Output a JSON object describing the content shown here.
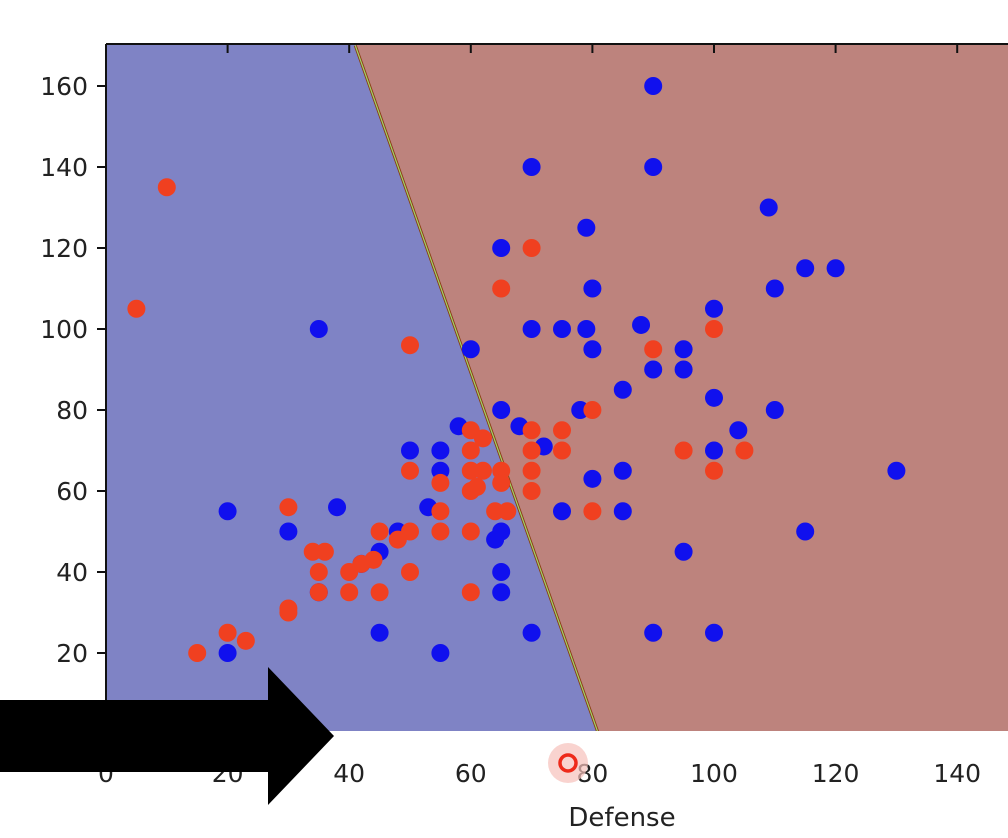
{
  "chart_data": {
    "type": "scatter",
    "title": "",
    "xlabel": "Defense",
    "ylabel": "",
    "xlim": [
      0,
      148
    ],
    "ylim": [
      0,
      170
    ],
    "xticks": [
      0,
      20,
      40,
      60,
      80,
      100,
      120,
      140
    ],
    "yticks": [
      20,
      40,
      60,
      80,
      100,
      120,
      140,
      160
    ],
    "grid": false,
    "legend": "none",
    "decision_boundary": {
      "line": [
        [
          41,
          170
        ],
        [
          81,
          0
        ]
      ],
      "left_region_color": "#7f83c5",
      "right_region_color": "#bd837d"
    },
    "series": [
      {
        "color": "#1010ee",
        "points": [
          [
            90,
            160
          ],
          [
            70,
            140
          ],
          [
            90,
            140
          ],
          [
            109,
            130
          ],
          [
            79,
            125
          ],
          [
            65,
            120
          ],
          [
            115,
            115
          ],
          [
            120,
            115
          ],
          [
            80,
            110
          ],
          [
            110,
            110
          ],
          [
            100,
            105
          ],
          [
            35,
            100
          ],
          [
            70,
            100
          ],
          [
            75,
            100
          ],
          [
            79,
            100
          ],
          [
            88,
            101
          ],
          [
            60,
            95
          ],
          [
            80,
            95
          ],
          [
            95,
            95
          ],
          [
            90,
            90
          ],
          [
            95,
            90
          ],
          [
            85,
            85
          ],
          [
            100,
            83
          ],
          [
            65,
            80
          ],
          [
            78,
            80
          ],
          [
            110,
            80
          ],
          [
            58,
            76
          ],
          [
            68,
            76
          ],
          [
            104,
            75
          ],
          [
            72,
            71
          ],
          [
            50,
            70
          ],
          [
            55,
            70
          ],
          [
            100,
            70
          ],
          [
            55,
            65
          ],
          [
            85,
            65
          ],
          [
            130,
            65
          ],
          [
            80,
            63
          ],
          [
            53,
            56
          ],
          [
            38,
            56
          ],
          [
            20,
            55
          ],
          [
            75,
            55
          ],
          [
            85,
            55
          ],
          [
            30,
            50
          ],
          [
            48,
            50
          ],
          [
            65,
            50
          ],
          [
            64,
            48
          ],
          [
            115,
            50
          ],
          [
            45,
            45
          ],
          [
            95,
            45
          ],
          [
            42,
            42
          ],
          [
            65,
            40
          ],
          [
            35,
            35
          ],
          [
            65,
            35
          ],
          [
            45,
            25
          ],
          [
            70,
            25
          ],
          [
            90,
            25
          ],
          [
            100,
            25
          ],
          [
            20,
            20
          ],
          [
            55,
            20
          ]
        ]
      },
      {
        "color": "#f04020",
        "points": [
          [
            10,
            135
          ],
          [
            70,
            120
          ],
          [
            65,
            110
          ],
          [
            5,
            105
          ],
          [
            100,
            100
          ],
          [
            50,
            96
          ],
          [
            90,
            95
          ],
          [
            80,
            80
          ],
          [
            60,
            75
          ],
          [
            70,
            75
          ],
          [
            75,
            75
          ],
          [
            62,
            73
          ],
          [
            60,
            70
          ],
          [
            70,
            70
          ],
          [
            75,
            70
          ],
          [
            95,
            70
          ],
          [
            105,
            70
          ],
          [
            50,
            65
          ],
          [
            60,
            65
          ],
          [
            62,
            65
          ],
          [
            65,
            65
          ],
          [
            70,
            65
          ],
          [
            100,
            65
          ],
          [
            55,
            62
          ],
          [
            65,
            62
          ],
          [
            60,
            60
          ],
          [
            70,
            60
          ],
          [
            61,
            61
          ],
          [
            30,
            56
          ],
          [
            55,
            55
          ],
          [
            64,
            55
          ],
          [
            66,
            55
          ],
          [
            80,
            55
          ],
          [
            45,
            50
          ],
          [
            50,
            50
          ],
          [
            55,
            50
          ],
          [
            60,
            50
          ],
          [
            48,
            48
          ],
          [
            34,
            45
          ],
          [
            36,
            45
          ],
          [
            44,
            43
          ],
          [
            42,
            42
          ],
          [
            40,
            40
          ],
          [
            35,
            40
          ],
          [
            50,
            40
          ],
          [
            35,
            35
          ],
          [
            40,
            35
          ],
          [
            45,
            35
          ],
          [
            60,
            35
          ],
          [
            30,
            30
          ],
          [
            20,
            25
          ],
          [
            23,
            23
          ],
          [
            15,
            20
          ],
          [
            30,
            31
          ]
        ]
      }
    ]
  }
}
